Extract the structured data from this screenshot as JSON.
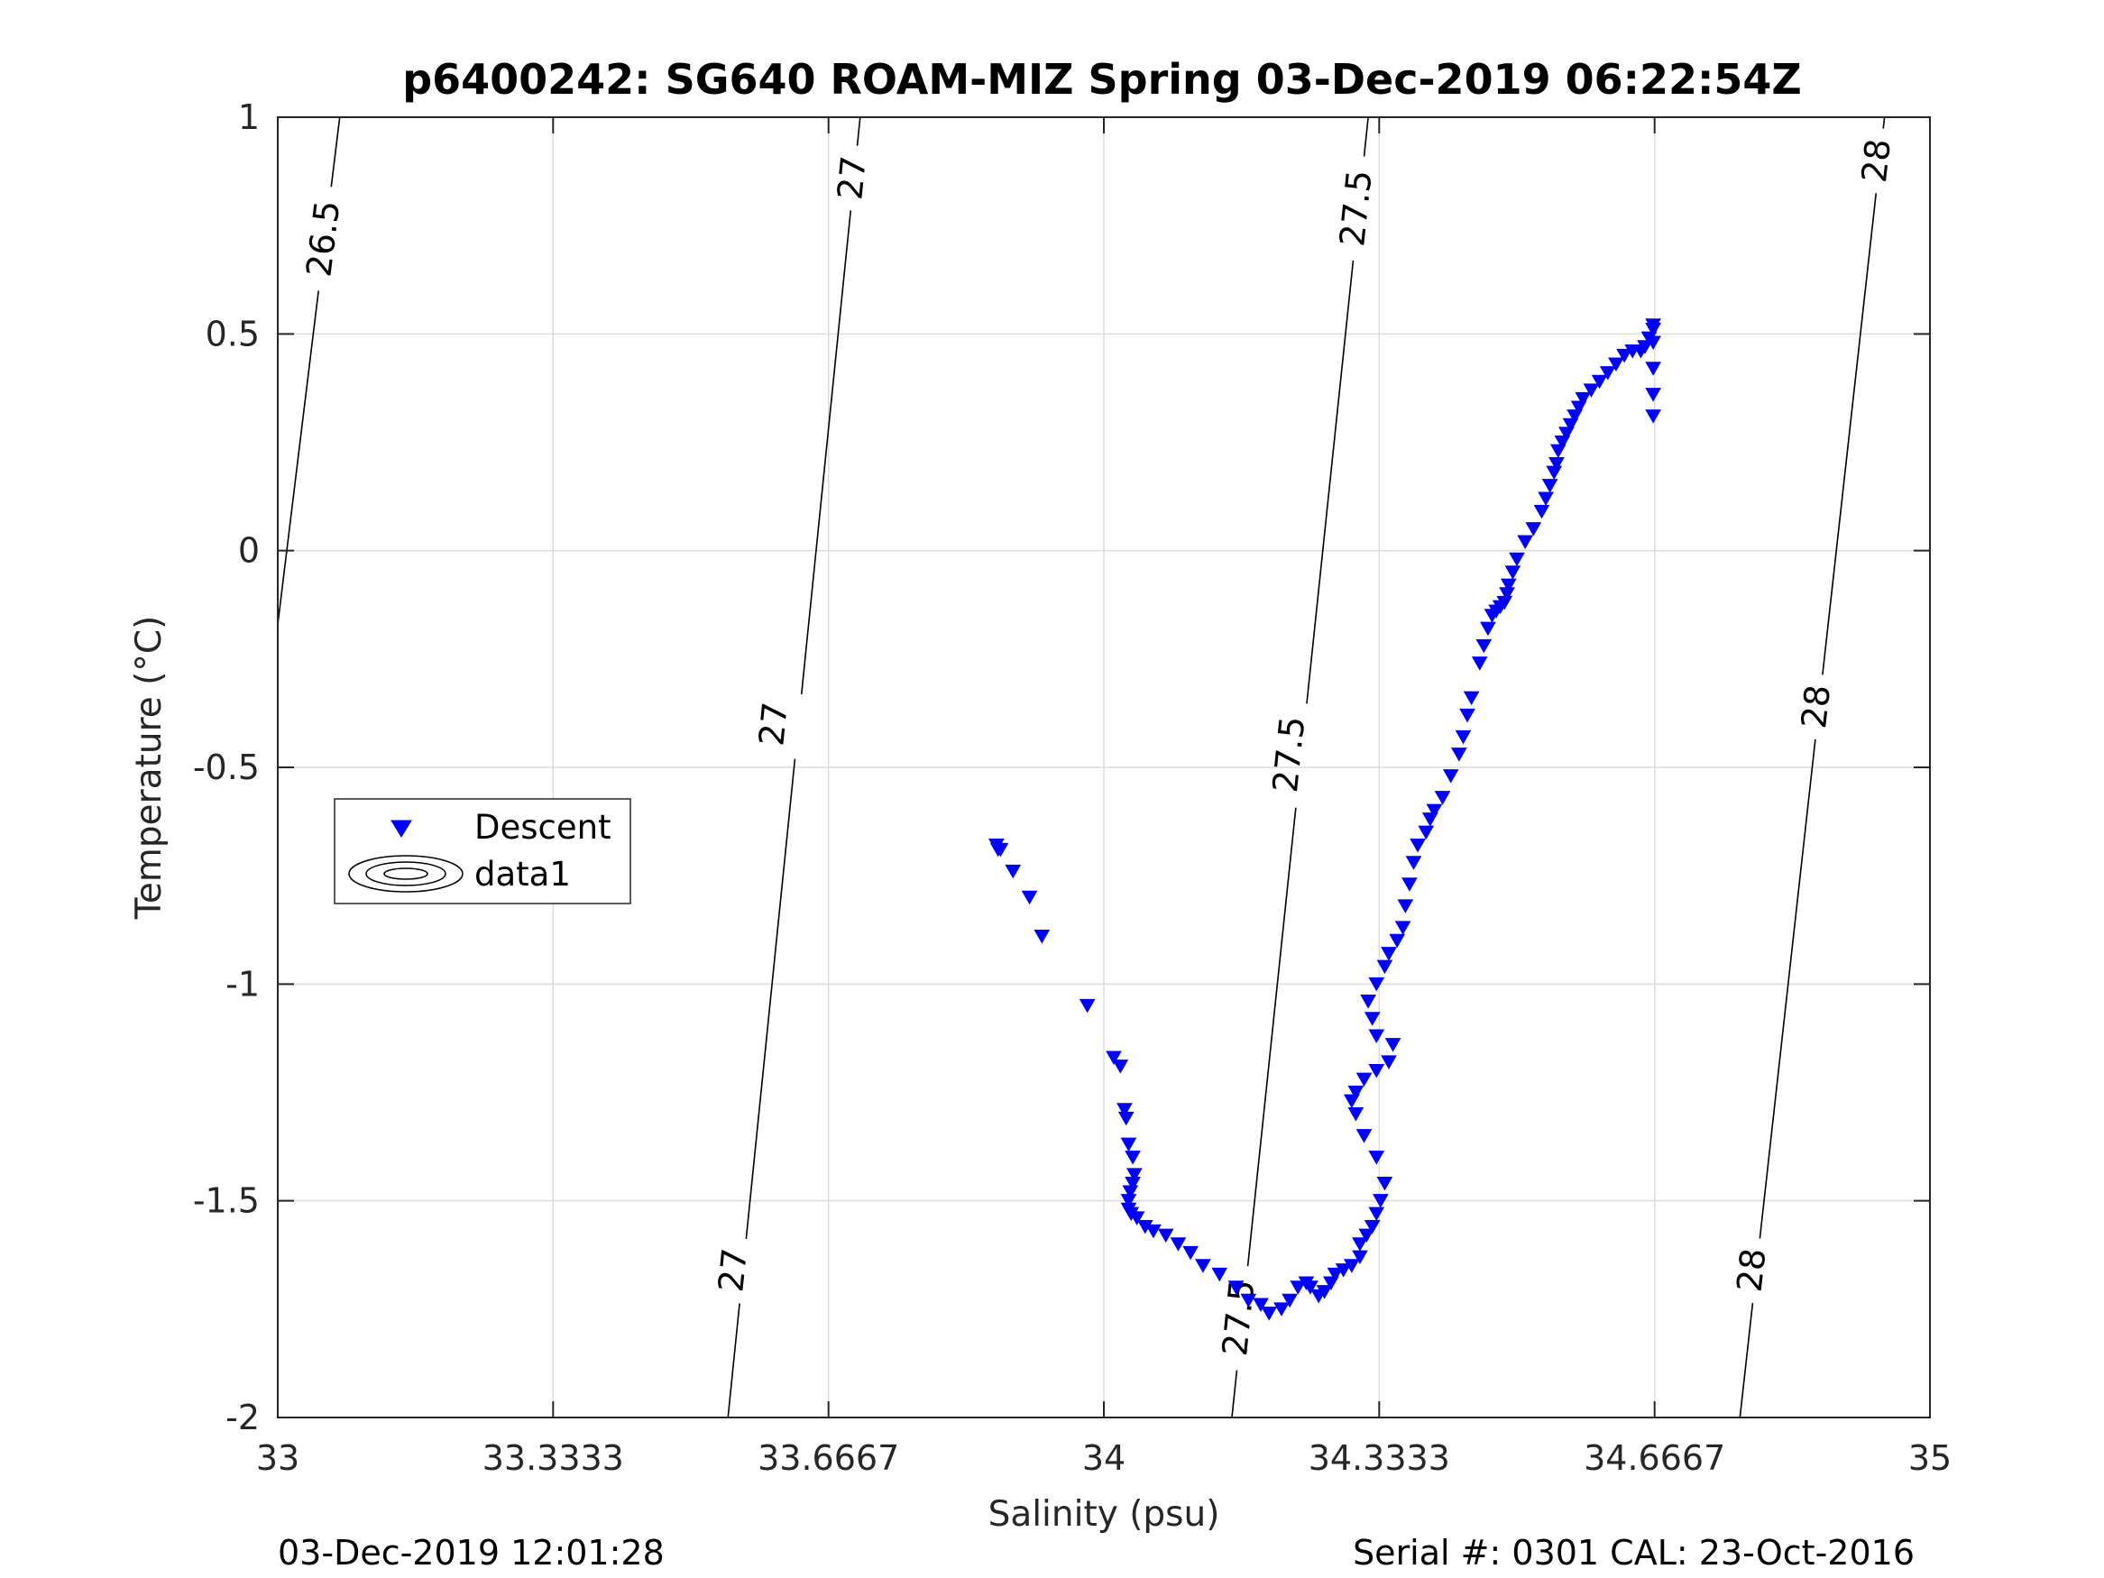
{
  "chart_data": {
    "type": "scatter",
    "title": "p6400242: SG640 ROAM-MIZ Spring 03-Dec-2019 06:22:54Z",
    "xlabel": "Salinity (psu)",
    "ylabel": "Temperature (°C)",
    "xlim": [
      33,
      35
    ],
    "ylim": [
      -2,
      1
    ],
    "xticks": [
      "33",
      "33.3333",
      "33.6667",
      "34",
      "34.3333",
      "34.6667",
      "35"
    ],
    "yticks": [
      "-2",
      "-1.5",
      "-1",
      "-0.5",
      "0",
      "0.5",
      "1"
    ],
    "grid": true,
    "legend": {
      "placement": "middle-left",
      "entries": [
        "Descent",
        "data1"
      ]
    },
    "series": [
      {
        "name": "Descent",
        "marker": "triangle-down",
        "color": "#0000ff",
        "x": [
          33.87,
          33.872,
          33.875,
          33.89,
          33.91,
          33.925,
          33.98,
          34.012,
          34.02,
          34.025,
          34.027,
          34.03,
          34.035,
          34.037,
          34.035,
          34.032,
          34.03,
          34.03,
          34.033,
          34.04,
          34.05,
          34.06,
          34.075,
          34.09,
          34.105,
          34.12,
          34.14,
          34.16,
          34.175,
          34.19,
          34.2,
          34.215,
          34.225,
          34.235,
          34.245,
          34.25,
          34.26,
          34.267,
          34.275,
          34.28,
          34.29,
          34.3,
          34.31,
          34.31,
          34.318,
          34.325,
          34.33,
          34.335,
          34.34,
          34.33,
          34.315,
          34.305,
          34.3,
          34.305,
          34.315,
          34.33,
          34.345,
          34.35,
          34.33,
          34.325,
          34.32,
          34.33,
          34.34,
          34.345,
          34.355,
          34.362,
          34.365,
          34.37,
          34.375,
          34.38,
          34.39,
          34.395,
          34.4,
          34.41,
          34.42,
          34.43,
          34.435,
          34.44,
          34.445,
          34.455,
          34.46,
          34.465,
          34.47,
          34.475,
          34.48,
          34.485,
          34.488,
          34.49,
          34.495,
          34.5,
          34.51,
          34.52,
          34.53,
          34.535,
          34.54,
          34.545,
          34.548,
          34.55,
          34.555,
          34.56,
          34.565,
          34.57,
          34.575,
          34.58,
          34.59,
          34.6,
          34.61,
          34.62,
          34.63,
          34.64,
          34.65,
          34.655,
          34.66,
          34.665,
          34.665,
          34.665,
          34.665,
          34.665,
          34.665
        ],
        "y": [
          -0.68,
          -0.69,
          -0.69,
          -0.74,
          -0.8,
          -0.89,
          -1.05,
          -1.17,
          -1.19,
          -1.29,
          -1.31,
          -1.37,
          -1.4,
          -1.44,
          -1.46,
          -1.48,
          -1.5,
          -1.52,
          -1.53,
          -1.54,
          -1.56,
          -1.57,
          -1.58,
          -1.6,
          -1.62,
          -1.65,
          -1.67,
          -1.7,
          -1.73,
          -1.74,
          -1.76,
          -1.75,
          -1.73,
          -1.7,
          -1.69,
          -1.7,
          -1.72,
          -1.71,
          -1.69,
          -1.67,
          -1.66,
          -1.65,
          -1.63,
          -1.6,
          -1.58,
          -1.56,
          -1.53,
          -1.5,
          -1.46,
          -1.4,
          -1.35,
          -1.3,
          -1.27,
          -1.25,
          -1.22,
          -1.2,
          -1.18,
          -1.14,
          -1.12,
          -1.08,
          -1.04,
          -1.0,
          -0.96,
          -0.93,
          -0.9,
          -0.87,
          -0.82,
          -0.77,
          -0.72,
          -0.68,
          -0.65,
          -0.62,
          -0.6,
          -0.57,
          -0.52,
          -0.47,
          -0.43,
          -0.38,
          -0.34,
          -0.26,
          -0.22,
          -0.18,
          -0.15,
          -0.14,
          -0.13,
          -0.12,
          -0.1,
          -0.08,
          -0.05,
          -0.02,
          0.02,
          0.05,
          0.09,
          0.12,
          0.15,
          0.18,
          0.2,
          0.23,
          0.25,
          0.27,
          0.29,
          0.31,
          0.33,
          0.35,
          0.37,
          0.39,
          0.41,
          0.43,
          0.45,
          0.46,
          0.46,
          0.47,
          0.49,
          0.51,
          0.52,
          0.48,
          0.42,
          0.36,
          0.31
        ]
      }
    ],
    "contours": [
      {
        "level": "26.5",
        "points": [
          [
            33.0,
            -0.17
          ],
          [
            33.075,
            1.0
          ]
        ],
        "labels": [
          {
            "x": 33.055,
            "y": 0.72,
            "text": "26.5"
          }
        ]
      },
      {
        "level": "27",
        "points": [
          [
            33.545,
            -2.0
          ],
          [
            33.705,
            1.0
          ]
        ],
        "labels": [
          {
            "x": 33.551,
            "y": -1.66,
            "text": "27"
          },
          {
            "x": 33.6,
            "y": -0.4,
            "text": "27"
          },
          {
            "x": 33.695,
            "y": 0.86,
            "text": "27"
          }
        ]
      },
      {
        "level": "27.5",
        "points": [
          [
            34.155,
            -2.0
          ],
          [
            34.32,
            1.0
          ]
        ],
        "labels": [
          {
            "x": 34.163,
            "y": -1.77,
            "text": "27.5"
          },
          {
            "x": 34.224,
            "y": -0.47,
            "text": "27.5"
          },
          {
            "x": 34.305,
            "y": 0.79,
            "text": "27.5"
          }
        ]
      },
      {
        "level": "28",
        "points": [
          [
            34.77,
            -2.0
          ],
          [
            34.945,
            1.0
          ]
        ],
        "labels": [
          {
            "x": 34.784,
            "y": -1.66,
            "text": "28"
          },
          {
            "x": 34.862,
            "y": -0.36,
            "text": "28"
          },
          {
            "x": 34.935,
            "y": 0.9,
            "text": "28"
          }
        ]
      }
    ]
  },
  "footer": {
    "left": "03-Dec-2019 12:01:28",
    "right": "Serial #: 0301  CAL: 23-Oct-2016"
  }
}
